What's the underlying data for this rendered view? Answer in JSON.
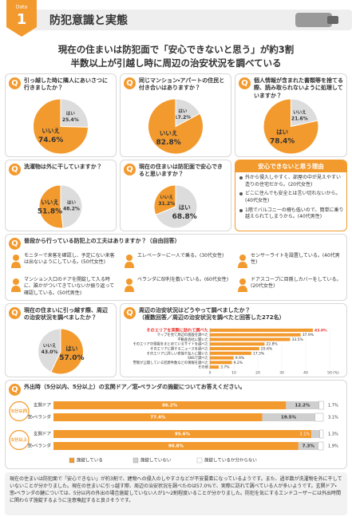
{
  "header": {
    "badge_label": "Data",
    "badge_number": "1",
    "title": "防犯意識と実態"
  },
  "headline": [
    "現在の住まいは防犯面で「安心できないと思う」が約3割",
    "半数以上が引越し時に周辺の治安状況を調べている"
  ],
  "question_mark": "Q",
  "chart_data": [
    {
      "type": "pie",
      "title": "引っ越した時に隣人にあいさつに行きましたか？",
      "categories": [
        "はい",
        "いいえ"
      ],
      "values": [
        25.4,
        74.6
      ],
      "value_labels": [
        "25.4%",
        "74.6%"
      ],
      "colors": [
        "#dcdcdc",
        "#f39a2e"
      ]
    },
    {
      "type": "pie",
      "title": "同じマンション・アパートの住民と付き合いはありますか？",
      "categories": [
        "はい",
        "いいえ"
      ],
      "values": [
        17.2,
        82.8
      ],
      "value_labels": [
        "17.2%",
        "82.8%"
      ],
      "colors": [
        "#dcdcdc",
        "#f39a2e"
      ]
    },
    {
      "type": "pie",
      "title": "個人情報が含まれた書類等を捨てる際、読み取られないように処理していますか？",
      "categories": [
        "いいえ",
        "はい"
      ],
      "values": [
        21.6,
        78.4
      ],
      "value_labels": [
        "21.6%",
        "78.4%"
      ],
      "colors": [
        "#dcdcdc",
        "#f39a2e"
      ]
    },
    {
      "type": "pie",
      "title": "洗濯物は外に干していますか？",
      "categories": [
        "はい",
        "いいえ"
      ],
      "values": [
        48.2,
        51.8
      ],
      "value_labels": [
        "48.2%",
        "51.8%"
      ],
      "colors": [
        "#dcdcdc",
        "#f39a2e"
      ]
    },
    {
      "type": "pie",
      "title": "現在の住まいは防犯面で安心できると思いますか？",
      "categories": [
        "はい",
        "いいえ"
      ],
      "values": [
        68.8,
        31.2
      ],
      "value_labels": [
        "68.8%",
        "31.2%"
      ],
      "colors": [
        "#dcdcdc",
        "#f39a2e"
      ]
    },
    {
      "type": "pie",
      "title": "現在の住まいに引っ越す際、周辺の治安状況を調べましたか？",
      "categories": [
        "はい",
        "いいえ"
      ],
      "values": [
        57.0,
        43.0
      ],
      "value_labels": [
        "57.0%",
        "43.0%"
      ],
      "colors": [
        "#f39a2e",
        "#dcdcdc"
      ]
    },
    {
      "type": "hbar",
      "title": "周辺の治安状況はどうやって調べましたか？\n（複数回答／周辺の治安状況を調べたと回答した272名）",
      "categories": [
        "そのエリアを実際に訪れて調べた",
        "マップを見て周辺の施設を調べた",
        "不動産会社に聞いた",
        "そのエリアの情報をまとめているサイトを調べた",
        "そのエリアに関するニュースを調べた",
        "そのエリアに詳しい家族や友人に聞いた",
        "SNSで調べた",
        "警察が公開している犯罪件数などの情報を調べた",
        "その他"
      ],
      "values": [
        43.0,
        37.9,
        33.5,
        22.8,
        20.6,
        17.3,
        9.9,
        9.2,
        3.7
      ],
      "value_labels": [
        "43.0%",
        "37.9%",
        "33.5%",
        "22.8%",
        "20.6%",
        "17.3%",
        "9.9%",
        "9.2%",
        "3.7%"
      ],
      "color": "#f39a2e",
      "highlight_color": "#e8322c",
      "xlim": [
        0,
        50
      ],
      "xticks": [
        0,
        10,
        20,
        30,
        40,
        50
      ],
      "x_label": "(%)"
    },
    {
      "type": "stacked_bar",
      "title": "外出時（5分以内、5分以上）の玄関ドア／窓・ベランダの施錠についてお答えください。",
      "groups": [
        "5分以内",
        "5分以上"
      ],
      "categories": [
        "玄関ドア",
        "窓・ベランダ",
        "玄関ドア",
        "窓・ベランダ"
      ],
      "xlim": [
        0,
        100
      ],
      "series": [
        {
          "name": "施錠している",
          "color": "#f39a2e",
          "values": [
            86.2,
            77.4,
            95.6,
            90.8
          ],
          "value_labels": [
            "86.2%",
            "77.4%",
            "95.6%",
            "90.8%"
          ]
        },
        {
          "name": "施錠していない",
          "color": "#cfcfcf",
          "values": [
            12.2,
            19.5,
            3.1,
            7.3
          ],
          "value_labels": [
            "12.2%",
            "19.5%",
            "3.1%",
            "7.3%"
          ]
        },
        {
          "name": "施錠しているか分からない",
          "color": "#ffffff",
          "values": [
            1.7,
            3.1,
            1.3,
            1.9
          ],
          "value_labels": [
            "1.7%",
            "3.1%",
            "1.3%",
            "1.9%"
          ]
        }
      ]
    }
  ],
  "reasons": {
    "title": "安心できないと思う理由",
    "items": [
      "外から侵入しやすく、部屋の中が見えやすい造りの住宅だから。(20代女性)",
      "どこに住んでも安全とは言い切れないから。(40代女性)",
      "1階でバルコニーの柵も低いので、簡単に乗り越えられてしまうから。(40代男性)"
    ]
  },
  "tips": {
    "question": "普段から行っている防犯上の工夫はありますか？（自由回答）",
    "items": [
      "モニターで来客を確認し、予定にない来客は出ないようにしている。(50代女性)",
      "マンション入口のドアを開錠して入る時に、誰かがついてきていないか振り返って確認している。(50代男性)",
      "エレベーターに一人で乗る。(30代女性)",
      "ベランダに砂利を敷いている。(60代女性)",
      "センサーライトを設置している。(40代男性)",
      "ドアスコープに目隠しカバーをしている。(20代女性)"
    ]
  },
  "summary": "現在の住まいは防犯面で「安心できない」が約3割で、建物への侵入のしやすさなどが不安要素になっているようです。また、過半数が洗濯物を外に干していないことが分かりました。現在の住まいに引っ越す際、周辺の治安状況を調べたのは57.0%で、実際に訪れて調べている人が多いようです。玄関ドア・窓・ベランダの鍵については、5分以内の外出の場合施錠していない人が1～2割程度いることが分かりました。防犯を気にするエンドユーザーには外出時間に関わらず施錠するように注意喚起すると良さそうです。"
}
